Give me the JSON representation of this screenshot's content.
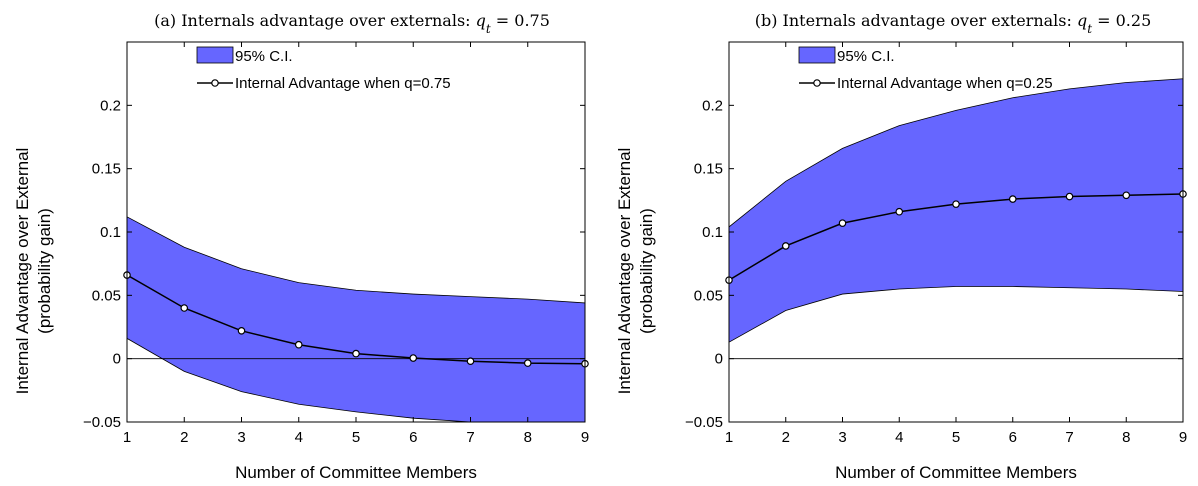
{
  "chart_data": [
    {
      "type": "line",
      "title_prefix": "(a) Internals advantage over externals: ",
      "title_var": "q",
      "title_sub": "t",
      "title_suffix": " = 0.75",
      "xlabel": "Number of Committee Members",
      "ylabel_line1": "Internal Advantage over External",
      "ylabel_line2": "(probability gain)",
      "xlim": [
        1,
        9
      ],
      "ylim": [
        -0.05,
        0.25
      ],
      "x_ticks": [
        1,
        2,
        3,
        4,
        5,
        6,
        7,
        8,
        9
      ],
      "y_ticks": [
        -0.05,
        0,
        0.05,
        0.1,
        0.15,
        0.2
      ],
      "y_tick_labels": [
        "−0.05",
        "0",
        "0.05",
        "0.1",
        "0.15",
        "0.2"
      ],
      "legend_placement": "top-left",
      "zero_line": true,
      "x": [
        1,
        2,
        3,
        4,
        5,
        6,
        7,
        8,
        9
      ],
      "series": [
        {
          "name": "Internal Advantage when q=0.75",
          "values": [
            0.066,
            0.04,
            0.022,
            0.011,
            0.004,
            0.0005,
            -0.002,
            -0.0035,
            -0.004
          ]
        }
      ],
      "band": {
        "name": "95% C.I.",
        "lower": [
          0.016,
          -0.01,
          -0.026,
          -0.036,
          -0.042,
          -0.047,
          -0.05,
          -0.053,
          -0.056
        ],
        "upper": [
          0.112,
          0.088,
          0.071,
          0.06,
          0.054,
          0.051,
          0.049,
          0.047,
          0.044
        ]
      },
      "colors": {
        "band": "#6666ff",
        "line": "#000000"
      }
    },
    {
      "type": "line",
      "title_prefix": "(b) Internals advantage over externals: ",
      "title_var": "q",
      "title_sub": "t",
      "title_suffix": " = 0.25",
      "xlabel": "Number of Committee Members",
      "ylabel_line1": "Internal Advantage over External",
      "ylabel_line2": "(probability gain)",
      "xlim": [
        1,
        9
      ],
      "ylim": [
        -0.05,
        0.25
      ],
      "x_ticks": [
        1,
        2,
        3,
        4,
        5,
        6,
        7,
        8,
        9
      ],
      "y_ticks": [
        -0.05,
        0,
        0.05,
        0.1,
        0.15,
        0.2
      ],
      "y_tick_labels": [
        "−0.05",
        "0",
        "0.05",
        "0.1",
        "0.15",
        "0.2"
      ],
      "legend_placement": "top-left",
      "zero_line": true,
      "x": [
        1,
        2,
        3,
        4,
        5,
        6,
        7,
        8,
        9
      ],
      "series": [
        {
          "name": "Internal Advantage when q=0.25",
          "values": [
            0.062,
            0.089,
            0.107,
            0.116,
            0.122,
            0.126,
            0.128,
            0.129,
            0.13
          ]
        }
      ],
      "band": {
        "name": "95% C.I.",
        "lower": [
          0.013,
          0.038,
          0.051,
          0.055,
          0.057,
          0.057,
          0.056,
          0.055,
          0.053
        ],
        "upper": [
          0.104,
          0.14,
          0.166,
          0.184,
          0.196,
          0.206,
          0.213,
          0.218,
          0.221
        ]
      },
      "colors": {
        "band": "#6666ff",
        "line": "#000000"
      }
    }
  ]
}
